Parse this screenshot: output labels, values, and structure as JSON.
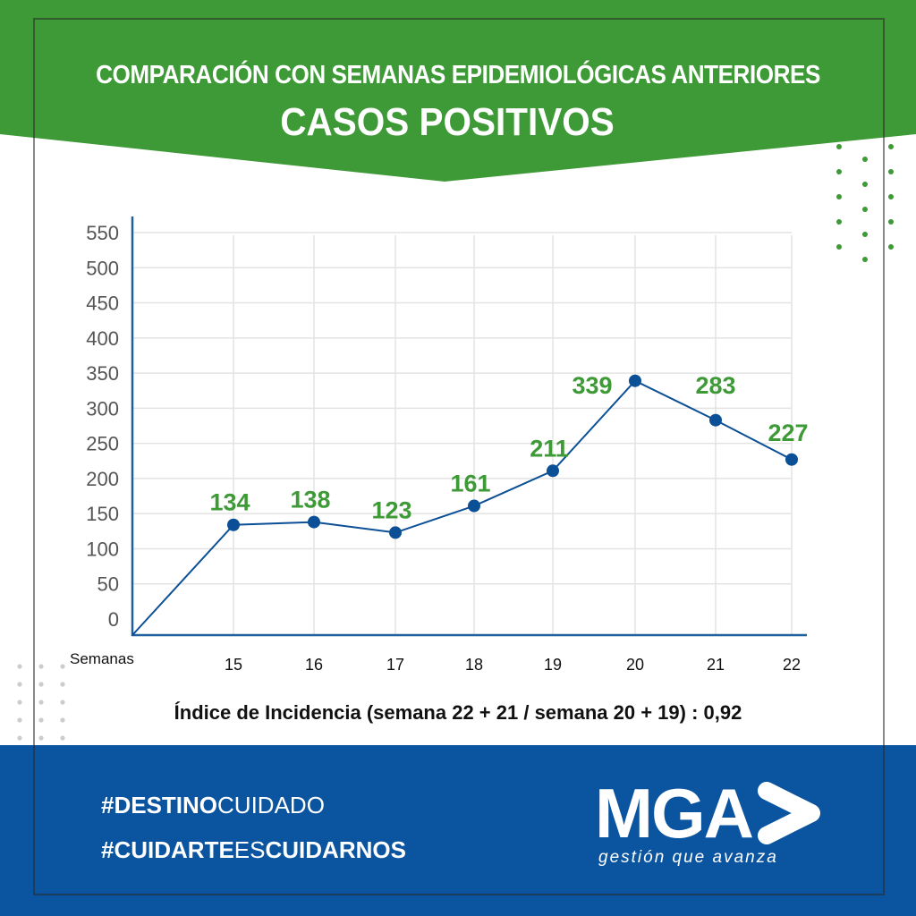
{
  "header": {
    "subtitle": "COMPARACIÓN CON SEMANAS EPIDEMIOLÓGICAS ANTERIORES",
    "title": "CASOS POSITIVOS"
  },
  "chart_data": {
    "type": "line",
    "title": "CASOS POSITIVOS",
    "xlabel": "Semanas",
    "ylabel": "",
    "categories": [
      "15",
      "16",
      "17",
      "18",
      "19",
      "20",
      "21",
      "22"
    ],
    "values": [
      134,
      138,
      123,
      161,
      211,
      339,
      283,
      227
    ],
    "data_labels": [
      "134",
      "138",
      "123",
      "161",
      "211",
      "339",
      "283",
      "227"
    ],
    "yticks": [
      "0",
      "50",
      "100",
      "150",
      "200",
      "250",
      "300",
      "350",
      "400",
      "450",
      "500",
      "550"
    ],
    "ylim": [
      0,
      550
    ],
    "grid": true,
    "line_color": "#0b4f96",
    "label_color": "#3e9a36"
  },
  "index_text": "Índice de Incidencia (semana 22 + 21 / semana 20 + 19) : 0,92",
  "footer": {
    "tag1_bold": "#DESTINO",
    "tag1_light": "CUIDADO",
    "tag2_bold1": "#CUIDARTE",
    "tag2_light": "ES",
    "tag2_bold2": "CUIDARNOS",
    "logo": "MGA",
    "slogan": "gestión que avanza"
  },
  "colors": {
    "green": "#3e9a36",
    "blue": "#0b55a0"
  }
}
